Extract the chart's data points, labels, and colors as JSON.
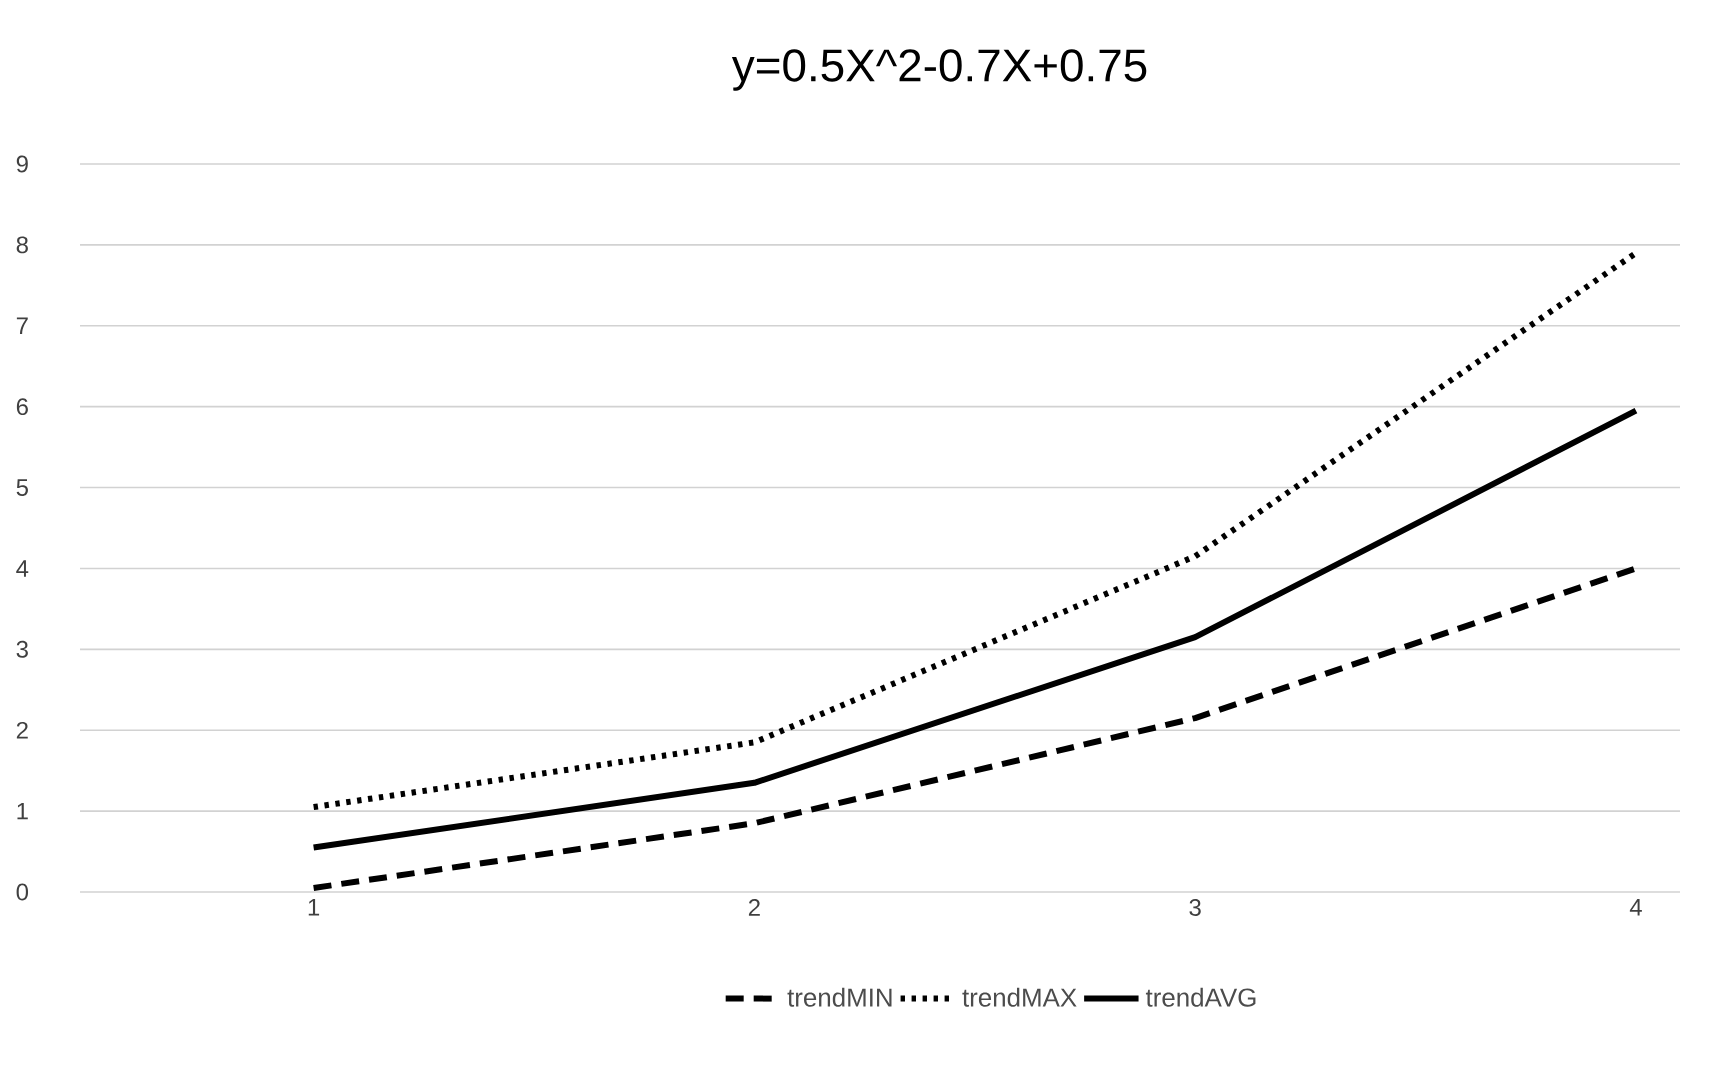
{
  "chart_data": {
    "type": "line",
    "title": "y=0.5X^2-0.7X+0.75",
    "categories": [
      "1",
      "2",
      "3",
      "4"
    ],
    "series": [
      {
        "name": "trendMIN",
        "color": "#000000",
        "line_style": "dashed",
        "values": [
          0.05,
          0.85,
          2.15,
          4.0
        ]
      },
      {
        "name": "trendMAX",
        "color": "#000000",
        "line_style": "dotted",
        "values": [
          1.05,
          1.85,
          4.15,
          7.9
        ]
      },
      {
        "name": "trendAVG",
        "color": "#000000",
        "line_style": "solid",
        "values": [
          0.55,
          1.35,
          3.15,
          5.95
        ]
      }
    ],
    "ylim": [
      0,
      9
    ],
    "yticks": [
      0,
      1,
      2,
      3,
      4,
      5,
      6,
      7,
      8,
      9
    ],
    "grid": "y",
    "legend": "bottom"
  }
}
